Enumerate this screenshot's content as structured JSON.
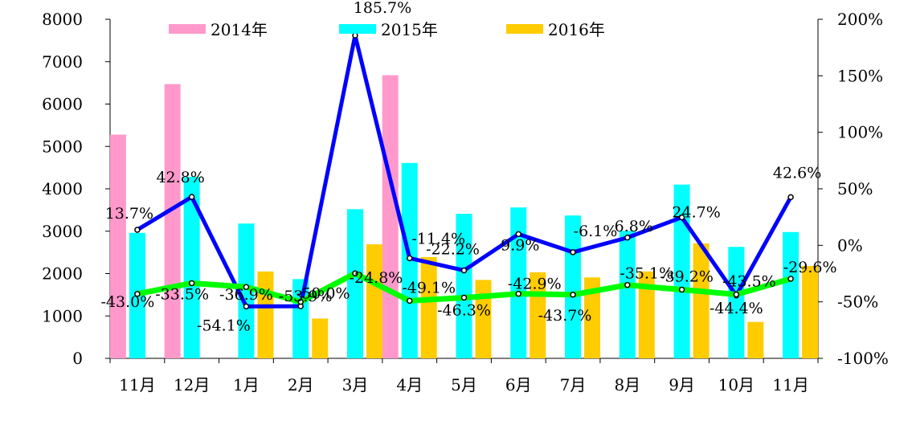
{
  "chart_data": {
    "type": "bar",
    "categories": [
      "11月",
      "12月",
      "1月",
      "2月",
      "3月",
      "4月",
      "5月",
      "6月",
      "7月",
      "8月",
      "9月",
      "10月",
      "11月"
    ],
    "series": [
      {
        "name": "2014年",
        "color": "#ff99cc",
        "values": [
          5280,
          6470,
          null,
          null,
          null,
          6680,
          null,
          null,
          null,
          null,
          null,
          null,
          null
        ]
      },
      {
        "name": "2015年",
        "color": "#00ffff",
        "values": [
          2960,
          4280,
          3180,
          1870,
          3520,
          4610,
          3410,
          3560,
          3370,
          3010,
          4100,
          2630,
          2980
        ]
      },
      {
        "name": "2016年",
        "color": "#ffcc00",
        "values": [
          null,
          null,
          2050,
          940,
          2690,
          2390,
          1850,
          2030,
          1910,
          2050,
          2710,
          860,
          2180
        ]
      }
    ],
    "lines": [
      {
        "color": "#0000ff",
        "values": [
          13.7,
          42.8,
          -54.1,
          -53.9,
          185.7,
          -11.4,
          -22.2,
          9.9,
          -6.1,
          6.8,
          24.7,
          -44.4,
          42.6
        ],
        "labels": [
          "13.7%",
          "42.8%",
          "-54.1%",
          "-53.9%",
          "185.7%",
          "-11.4%",
          "-22.2%",
          "9.9%",
          "-6.1%",
          "6.8%",
          "24.7%",
          "-44.4%",
          "42.6%"
        ]
      },
      {
        "color": "#00ff00",
        "values": [
          -43.0,
          -33.5,
          -36.9,
          -50.0,
          -24.8,
          -49.1,
          -46.3,
          -42.9,
          -43.7,
          -35.1,
          -39.2,
          -43.5,
          -29.6
        ],
        "labels": [
          "-43.0%",
          "-33.5%",
          "-36.9%",
          "-50.0%",
          "-24.8%",
          "-49.1%",
          "-46.3%",
          "-42.9%",
          "-43.7%",
          "-35.1%",
          "-39.2%",
          "-43.5%",
          "-29.6%"
        ]
      }
    ],
    "y_left": {
      "min": 0,
      "max": 8000,
      "ticks": [
        "0",
        "1000",
        "2000",
        "3000",
        "4000",
        "5000",
        "6000",
        "7000",
        "8000"
      ]
    },
    "y_right": {
      "min": -100,
      "max": 200,
      "ticks": [
        "-100%",
        "-50%",
        "0%",
        "50%",
        "100%",
        "150%",
        "200%"
      ]
    },
    "legend_position": "top"
  }
}
